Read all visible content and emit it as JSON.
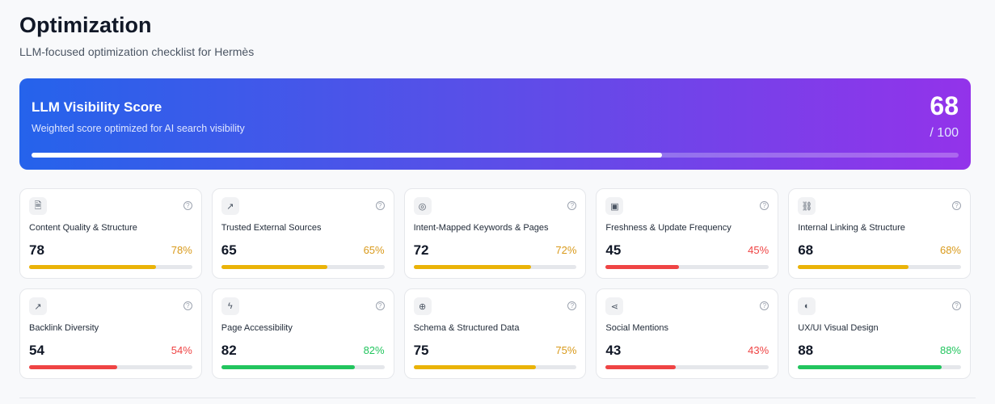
{
  "header": {
    "title": "Optimization",
    "subtitle": "LLM-focused optimization checklist for Hermès"
  },
  "banner": {
    "title": "LLM Visibility Score",
    "subtitle": "Weighted score optimized for AI search visibility",
    "score": "68",
    "max": "/ 100",
    "progress": 68
  },
  "colors": {
    "yellow": "#eab308",
    "yellow_text": "#d99a1b",
    "red": "#ef4444",
    "green": "#22c55e"
  },
  "cards": [
    {
      "label": "Content Quality & Structure",
      "value": "78",
      "percent": "78%",
      "progress": 78,
      "status": "yellow",
      "icon": "file-text-icon",
      "glyph": "🗎"
    },
    {
      "label": "Trusted External Sources",
      "value": "65",
      "percent": "65%",
      "progress": 65,
      "status": "yellow",
      "icon": "external-link-icon",
      "glyph": "↗"
    },
    {
      "label": "Intent-Mapped Keywords & Pages",
      "value": "72",
      "percent": "72%",
      "progress": 72,
      "status": "yellow",
      "icon": "target-icon",
      "glyph": "◎"
    },
    {
      "label": "Freshness & Update Frequency",
      "value": "45",
      "percent": "45%",
      "progress": 45,
      "status": "red",
      "icon": "calendar-icon",
      "glyph": "▣"
    },
    {
      "label": "Internal Linking & Structure",
      "value": "68",
      "percent": "68%",
      "progress": 68,
      "status": "yellow",
      "icon": "link-icon",
      "glyph": "⛓"
    },
    {
      "label": "Backlink Diversity",
      "value": "54",
      "percent": "54%",
      "progress": 54,
      "status": "red",
      "icon": "trending-up-icon",
      "glyph": "↗"
    },
    {
      "label": "Page Accessibility",
      "value": "82",
      "percent": "82%",
      "progress": 82,
      "status": "green",
      "icon": "zap-icon",
      "glyph": "ϟ"
    },
    {
      "label": "Schema & Structured Data",
      "value": "75",
      "percent": "75%",
      "progress": 75,
      "status": "yellow",
      "icon": "globe-icon",
      "glyph": "⊕"
    },
    {
      "label": "Social Mentions",
      "value": "43",
      "percent": "43%",
      "progress": 43,
      "status": "red",
      "icon": "share-icon",
      "glyph": "⋖"
    },
    {
      "label": "UX/UI Visual Design",
      "value": "88",
      "percent": "88%",
      "progress": 88,
      "status": "green",
      "icon": "palette-icon",
      "glyph": "◐"
    }
  ],
  "help_glyph": "?"
}
